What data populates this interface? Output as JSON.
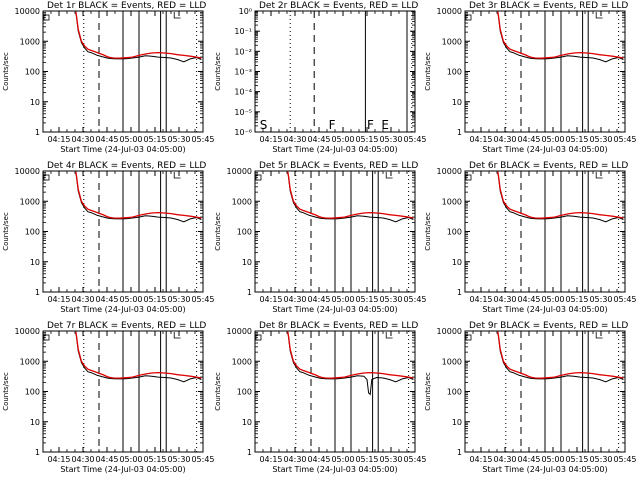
{
  "figure": {
    "colors": {
      "events": "#000000",
      "lld": "#dd0000",
      "frame": "#000000"
    },
    "x_time_ticks": [
      "04:15",
      "04:30",
      "04:45",
      "05:00",
      "05:15",
      "05:30",
      "05:45"
    ],
    "y_ticks_counts": [
      "1",
      "10",
      "100",
      "1000",
      "10000"
    ],
    "y_ticks_det2": [
      "10⁰",
      "10⁻¹",
      "10⁻²",
      "10⁻³",
      "10⁻⁴",
      "10⁻⁵",
      "10⁻⁶"
    ]
  },
  "chart_data": [
    {
      "type": "line",
      "title": "Det 1r BLACK = Events, RED = LLD",
      "xlabel": "Start Time (24-Jul-03 04:05:00)",
      "ylabel": "Counts/sec",
      "yscale": "log",
      "ylim": [
        1,
        10000
      ],
      "xlim_minutes_after_start": [
        0,
        100
      ],
      "series": [
        {
          "name": "Events",
          "color": "#000000",
          "x": [
            20.5,
            21,
            22,
            24,
            26,
            28,
            30,
            34,
            38,
            40,
            42,
            44,
            48,
            52,
            56,
            60,
            64,
            68,
            72,
            76,
            80,
            84,
            88,
            92,
            96,
            99
          ],
          "y": [
            9000,
            6000,
            2200,
            900,
            600,
            450,
            420,
            340,
            300,
            280,
            270,
            265,
            260,
            265,
            280,
            300,
            330,
            320,
            300,
            290,
            280,
            250,
            210,
            260,
            290,
            250
          ]
        },
        {
          "name": "LLD",
          "color": "#dd0000",
          "x": [
            20.5,
            21,
            22,
            24,
            26,
            28,
            30,
            34,
            38,
            40,
            42,
            44,
            48,
            52,
            56,
            60,
            64,
            68,
            72,
            76,
            80,
            84,
            88,
            92,
            96,
            99
          ],
          "y": [
            9500,
            6500,
            2500,
            1000,
            700,
            550,
            500,
            420,
            350,
            310,
            290,
            280,
            275,
            285,
            300,
            340,
            380,
            410,
            420,
            410,
            390,
            360,
            340,
            320,
            300,
            280
          ]
        }
      ]
    },
    {
      "type": "line",
      "title": "Det 2r BLACK = Events, RED = LLD",
      "xlabel": "Start Time (24-Jul-03 04:05:00)",
      "ylabel": "Counts/sec",
      "yscale": "log",
      "ylim": [
        1e-06,
        1
      ],
      "xlim_minutes_after_start": [
        0,
        100
      ],
      "annotations": [
        "S",
        "F",
        "F",
        "E"
      ],
      "series": []
    },
    {
      "type": "line",
      "title": "Det 3r BLACK = Events, RED = LLD",
      "xlabel": "Start Time (24-Jul-03 04:05:00)",
      "ylabel": "Counts/sec",
      "yscale": "log",
      "ylim": [
        1,
        10000
      ],
      "xlim_minutes_after_start": [
        0,
        100
      ],
      "series": [
        {
          "name": "Events",
          "color": "#000000",
          "x": [
            20.5,
            21,
            22,
            24,
            26,
            28,
            30,
            34,
            38,
            40,
            42,
            44,
            48,
            52,
            56,
            60,
            64,
            68,
            72,
            76,
            80,
            84,
            88,
            92,
            96,
            99
          ],
          "y": [
            9000,
            6000,
            2200,
            900,
            600,
            450,
            420,
            340,
            300,
            280,
            270,
            265,
            260,
            265,
            280,
            300,
            330,
            320,
            300,
            290,
            280,
            250,
            210,
            260,
            290,
            250
          ]
        },
        {
          "name": "LLD",
          "color": "#dd0000",
          "x": [
            20.5,
            21,
            22,
            24,
            26,
            28,
            30,
            34,
            38,
            40,
            42,
            44,
            48,
            52,
            56,
            60,
            64,
            68,
            72,
            76,
            80,
            84,
            88,
            92,
            96,
            99
          ],
          "y": [
            9500,
            6500,
            2500,
            1000,
            700,
            550,
            500,
            420,
            350,
            310,
            290,
            280,
            275,
            285,
            300,
            340,
            380,
            410,
            420,
            410,
            390,
            360,
            340,
            320,
            300,
            280
          ]
        }
      ]
    },
    {
      "type": "line",
      "title": "Det 4r BLACK = Events, RED = LLD",
      "xlabel": "Start Time (24-Jul-03 04:05:00)",
      "ylabel": "Counts/sec",
      "yscale": "log",
      "ylim": [
        1,
        10000
      ],
      "xlim_minutes_after_start": [
        0,
        100
      ],
      "series": [
        {
          "name": "Events",
          "color": "#000000",
          "x": [
            20.5,
            21,
            22,
            24,
            26,
            28,
            30,
            34,
            38,
            40,
            42,
            44,
            48,
            52,
            56,
            60,
            64,
            68,
            72,
            76,
            80,
            84,
            88,
            92,
            96,
            99
          ],
          "y": [
            9000,
            6000,
            2200,
            900,
            600,
            450,
            420,
            340,
            300,
            280,
            270,
            265,
            260,
            265,
            280,
            300,
            330,
            320,
            300,
            290,
            280,
            250,
            210,
            260,
            290,
            250
          ]
        },
        {
          "name": "LLD",
          "color": "#dd0000",
          "x": [
            20.5,
            21,
            22,
            24,
            26,
            28,
            30,
            34,
            38,
            40,
            42,
            44,
            48,
            52,
            56,
            60,
            64,
            68,
            72,
            76,
            80,
            84,
            88,
            92,
            96,
            99
          ],
          "y": [
            9500,
            6500,
            2500,
            1000,
            700,
            550,
            500,
            420,
            350,
            310,
            290,
            280,
            275,
            285,
            300,
            340,
            380,
            410,
            420,
            410,
            390,
            360,
            340,
            320,
            300,
            280
          ]
        }
      ]
    },
    {
      "type": "line",
      "title": "Det 5r BLACK = Events, RED = LLD",
      "xlabel": "Start Time (24-Jul-03 04:05:00)",
      "ylabel": "Counts/sec",
      "yscale": "log",
      "ylim": [
        1,
        10000
      ],
      "xlim_minutes_after_start": [
        0,
        100
      ],
      "series": [
        {
          "name": "Events",
          "color": "#000000",
          "x": [
            20.5,
            21,
            22,
            24,
            26,
            28,
            30,
            34,
            38,
            40,
            42,
            44,
            48,
            52,
            56,
            60,
            64,
            68,
            72,
            76,
            80,
            84,
            88,
            92,
            96,
            99
          ],
          "y": [
            9000,
            6000,
            2200,
            900,
            600,
            450,
            420,
            340,
            300,
            280,
            270,
            265,
            260,
            265,
            280,
            300,
            330,
            320,
            300,
            290,
            280,
            250,
            210,
            260,
            290,
            250
          ]
        },
        {
          "name": "LLD",
          "color": "#dd0000",
          "x": [
            20.5,
            21,
            22,
            24,
            26,
            28,
            30,
            34,
            38,
            40,
            42,
            44,
            48,
            52,
            56,
            60,
            64,
            68,
            72,
            76,
            80,
            84,
            88,
            92,
            96,
            99
          ],
          "y": [
            9500,
            6500,
            2500,
            1000,
            700,
            550,
            500,
            420,
            350,
            310,
            290,
            280,
            275,
            285,
            300,
            340,
            380,
            410,
            420,
            410,
            390,
            360,
            340,
            320,
            300,
            280
          ]
        }
      ]
    },
    {
      "type": "line",
      "title": "Det 6r BLACK = Events, RED = LLD",
      "xlabel": "Start Time (24-Jul-03 04:05:00)",
      "ylabel": "Counts/sec",
      "yscale": "log",
      "ylim": [
        1,
        10000
      ],
      "xlim_minutes_after_start": [
        0,
        100
      ],
      "series": [
        {
          "name": "Events",
          "color": "#000000",
          "x": [
            20.5,
            21,
            22,
            24,
            26,
            28,
            30,
            34,
            38,
            40,
            42,
            44,
            48,
            52,
            56,
            60,
            64,
            68,
            72,
            76,
            80,
            84,
            88,
            92,
            96,
            99
          ],
          "y": [
            9000,
            6000,
            2200,
            900,
            600,
            450,
            420,
            340,
            300,
            280,
            270,
            265,
            260,
            265,
            280,
            300,
            330,
            320,
            300,
            290,
            280,
            250,
            210,
            260,
            290,
            250
          ]
        },
        {
          "name": "LLD",
          "color": "#dd0000",
          "x": [
            20.5,
            21,
            22,
            24,
            26,
            28,
            30,
            34,
            38,
            40,
            42,
            44,
            48,
            52,
            56,
            60,
            64,
            68,
            72,
            76,
            80,
            84,
            88,
            92,
            96,
            99
          ],
          "y": [
            9500,
            6500,
            2500,
            1000,
            700,
            550,
            500,
            420,
            350,
            310,
            290,
            280,
            275,
            285,
            300,
            340,
            380,
            410,
            420,
            410,
            390,
            360,
            340,
            320,
            300,
            280
          ]
        }
      ]
    },
    {
      "type": "line",
      "title": "Det 7r BLACK = Events, RED = LLD",
      "xlabel": "Start Time (24-Jul-03 04:05:00)",
      "ylabel": "Counts/sec",
      "yscale": "log",
      "ylim": [
        1,
        10000
      ],
      "xlim_minutes_after_start": [
        0,
        100
      ],
      "series": [
        {
          "name": "Events",
          "color": "#000000",
          "x": [
            20.5,
            21,
            22,
            24,
            26,
            28,
            30,
            34,
            38,
            40,
            42,
            44,
            48,
            52,
            56,
            60,
            64,
            68,
            72,
            76,
            80,
            84,
            88,
            92,
            96,
            99
          ],
          "y": [
            9000,
            6000,
            2200,
            900,
            600,
            450,
            420,
            340,
            300,
            280,
            270,
            265,
            260,
            265,
            280,
            300,
            330,
            320,
            300,
            290,
            280,
            250,
            210,
            260,
            290,
            250
          ]
        },
        {
          "name": "LLD",
          "color": "#dd0000",
          "x": [
            20.5,
            21,
            22,
            24,
            26,
            28,
            30,
            34,
            38,
            40,
            42,
            44,
            48,
            52,
            56,
            60,
            64,
            68,
            72,
            76,
            80,
            84,
            88,
            92,
            96,
            99
          ],
          "y": [
            9500,
            6500,
            2500,
            1000,
            700,
            550,
            500,
            420,
            350,
            310,
            290,
            280,
            275,
            285,
            300,
            340,
            380,
            410,
            420,
            410,
            390,
            360,
            340,
            320,
            300,
            280
          ]
        }
      ]
    },
    {
      "type": "line",
      "title": "Det 8r BLACK = Events, RED = LLD",
      "xlabel": "Start Time (24-Jul-03 04:05:00)",
      "ylabel": "Counts/sec",
      "yscale": "log",
      "ylim": [
        1,
        10000
      ],
      "xlim_minutes_after_start": [
        0,
        100
      ],
      "series": [
        {
          "name": "Events",
          "color": "#000000",
          "x": [
            20.5,
            21,
            22,
            24,
            26,
            28,
            30,
            34,
            38,
            40,
            42,
            44,
            48,
            52,
            56,
            60,
            64,
            68,
            70,
            71,
            72,
            73,
            76,
            80,
            84,
            88,
            92,
            96,
            99
          ],
          "y": [
            9000,
            6000,
            2200,
            900,
            600,
            450,
            420,
            340,
            300,
            280,
            270,
            265,
            260,
            265,
            280,
            300,
            330,
            320,
            250,
            90,
            80,
            250,
            290,
            280,
            250,
            210,
            260,
            290,
            250
          ]
        },
        {
          "name": "LLD",
          "color": "#dd0000",
          "x": [
            20.5,
            21,
            22,
            24,
            26,
            28,
            30,
            34,
            38,
            40,
            42,
            44,
            48,
            52,
            56,
            60,
            64,
            68,
            72,
            76,
            80,
            84,
            88,
            92,
            96,
            99
          ],
          "y": [
            9500,
            6500,
            2500,
            1000,
            700,
            550,
            500,
            420,
            350,
            310,
            290,
            280,
            275,
            285,
            300,
            340,
            380,
            410,
            420,
            410,
            390,
            360,
            340,
            320,
            300,
            280
          ]
        }
      ]
    },
    {
      "type": "line",
      "title": "Det 9r BLACK = Events, RED = LLD",
      "xlabel": "Start Time (24-Jul-03 04:05:00)",
      "ylabel": "Counts/sec",
      "yscale": "log",
      "ylim": [
        1,
        10000
      ],
      "xlim_minutes_after_start": [
        0,
        100
      ],
      "series": [
        {
          "name": "Events",
          "color": "#000000",
          "x": [
            20.5,
            21,
            22,
            24,
            26,
            28,
            30,
            34,
            38,
            40,
            42,
            44,
            48,
            52,
            56,
            60,
            64,
            68,
            72,
            76,
            80,
            84,
            88,
            92,
            96,
            99
          ],
          "y": [
            9000,
            6000,
            2200,
            900,
            600,
            450,
            420,
            340,
            300,
            280,
            270,
            265,
            260,
            265,
            280,
            300,
            330,
            320,
            300,
            290,
            280,
            250,
            210,
            260,
            290,
            250
          ]
        },
        {
          "name": "LLD",
          "color": "#dd0000",
          "x": [
            20.5,
            21,
            22,
            24,
            26,
            28,
            30,
            34,
            38,
            40,
            42,
            44,
            48,
            52,
            56,
            60,
            64,
            68,
            72,
            76,
            80,
            84,
            88,
            92,
            96,
            99
          ],
          "y": [
            9500,
            6500,
            2500,
            1000,
            700,
            550,
            500,
            420,
            350,
            310,
            290,
            280,
            275,
            285,
            300,
            340,
            380,
            410,
            420,
            410,
            390,
            360,
            340,
            320,
            300,
            280
          ]
        }
      ]
    }
  ]
}
